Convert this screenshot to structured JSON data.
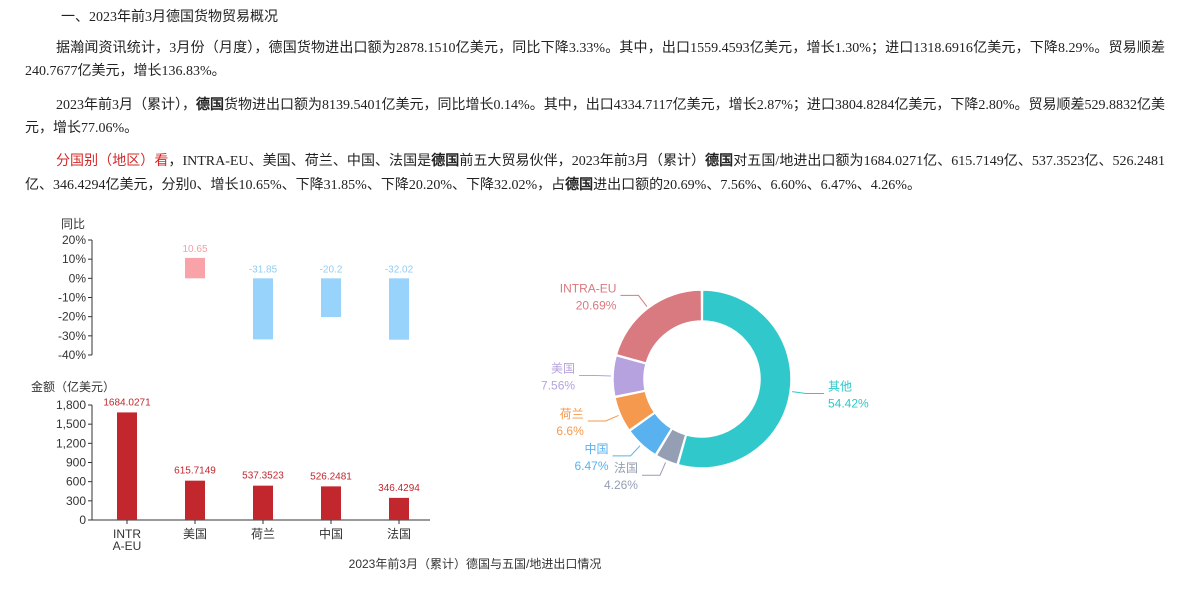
{
  "article": {
    "heading": "一、2023年前3月德国货物贸易概况",
    "p1": "据瀚闻资讯统计，3月份（月度），德国货物进出口额为2878.1510亿美元，同比下降3.33%。其中，出口1559.4593亿美元，增长1.30%；进口1318.6916亿美元，下降8.29%。贸易顺差240.7677亿美元，增长136.83%。",
    "p2a": "2023年前3月（累计），",
    "p2b": "德国",
    "p2c": "货物进出口额为8139.5401亿美元，同比增长0.14%。其中，出口4334.7117亿美元，增长2.87%；进口3804.8284亿美元，下降2.80%。贸易顺差529.8832亿美元，增长77.06%。",
    "p3_red": "分国别（地区）看",
    "p3a": "，INTRA-EU、美国、荷兰、中国、法国是",
    "p3b": "德国",
    "p3c": "前五大贸易伙伴，2023年前3月（累计）",
    "p3d": "德国",
    "p3e": "对五国/地进出口额为1684.0271亿、615.7149亿、537.3523亿、526.2481亿、346.4294亿美元，分别0、增长10.65%、下降31.85%、下降20.20%、下降32.02%，占",
    "p3f": "德国",
    "p3g": "进出口额的20.69%、7.56%、6.60%、6.47%、4.26%。"
  },
  "chart_data": [
    {
      "type": "bar",
      "ylabel": "同比",
      "categories": [
        "INTRA-EU",
        "美国",
        "荷兰",
        "中国",
        "法国"
      ],
      "values": [
        null,
        10.65,
        -31.85,
        -20.2,
        -32.02
      ],
      "labels": [
        "",
        "10.65",
        "-31.85",
        "-20.2",
        "-32.02"
      ],
      "yticks": [
        "20%",
        "10%",
        "0%",
        "-10%",
        "-20%",
        "-30%",
        "-40%"
      ],
      "ylim": [
        -40,
        20
      ],
      "colors": {
        "positive": "#f9a3a8",
        "negative": "#97d3fb",
        "positive_label": "#f4a0a4",
        "negative_label": "#8fcdf5"
      }
    },
    {
      "type": "bar",
      "ylabel": "金额（亿美元）",
      "categories": [
        "INTR\nA-EU",
        "美国",
        "荷兰",
        "中国",
        "法国"
      ],
      "values": [
        1684.0271,
        615.7149,
        537.3523,
        526.2481,
        346.4294
      ],
      "labels": [
        "1684.0271",
        "615.7149",
        "537.3523",
        "526.2481",
        "346.4294"
      ],
      "yticks": [
        "1,800",
        "1,500",
        "1,200",
        "900",
        "600",
        "300",
        "0"
      ],
      "ylim": [
        0,
        1800
      ],
      "color": "#c1272d",
      "label_color": "#c1272d"
    },
    {
      "type": "pie",
      "slices": [
        {
          "name": "其他",
          "value": 54.42,
          "label": "54.42%",
          "color": "#30c8cb"
        },
        {
          "name": "法国",
          "value": 4.26,
          "label": "4.26%",
          "color": "#949fb4"
        },
        {
          "name": "中国",
          "value": 6.47,
          "label": "6.47%",
          "color": "#59b1ef"
        },
        {
          "name": "荷兰",
          "value": 6.6,
          "label": "6.6%",
          "color": "#f5994e"
        },
        {
          "name": "美国",
          "value": 7.56,
          "label": "7.56%",
          "color": "#b6a2de"
        },
        {
          "name": "INTRA-EU",
          "value": 20.69,
          "label": "20.69%",
          "color": "#d87a80"
        }
      ]
    }
  ],
  "caption": "2023年前3月（累计）德国与五国/地进出口情况",
  "colors": {
    "axis": "#333333",
    "text": "#222222",
    "caption": "#333333"
  }
}
